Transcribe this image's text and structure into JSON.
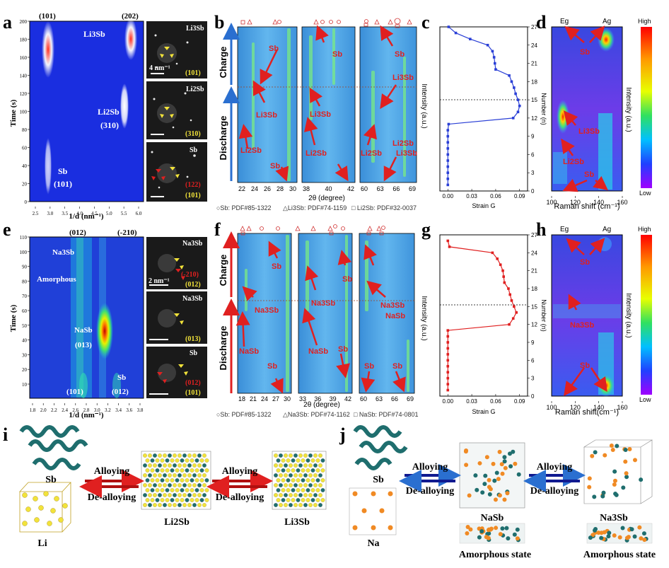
{
  "panel_letters": [
    "a",
    "b",
    "c",
    "d",
    "e",
    "f",
    "g",
    "h",
    "i",
    "j"
  ],
  "colors": {
    "map_bg": "#1a2ee0",
    "red": "#e02020",
    "blue_line": "#2a3fd6",
    "teal": "#1f6e6e",
    "yellow": "#f2e33a",
    "orange": "#f08a24",
    "dark_red_arrow": "#b01010",
    "dark_blue_arrow": "#101a90"
  },
  "panel_a": {
    "ylabel": "Time (s)",
    "xlabel": "1/d (nm⁻¹)",
    "xticks": [
      "2.5",
      "3.0",
      "3.5",
      "4.0",
      "4.5",
      "5.0",
      "5.5",
      "6.0"
    ],
    "yticks": [
      "0",
      "20",
      "40",
      "60",
      "80",
      "100",
      "120",
      "140",
      "160",
      "180",
      "200"
    ],
    "top_labels": [
      "(101)",
      "(202)"
    ],
    "phase_labels": [
      "Li3Sb",
      "Li2Sb",
      "(310)",
      "Sb",
      "(101)"
    ],
    "saed": [
      {
        "phase": "Li3Sb",
        "index": "(101)",
        "scale": "4 nm⁻¹"
      },
      {
        "phase": "Li2Sb",
        "index": "(310)",
        "scale": ""
      },
      {
        "phase": "Sb",
        "index": "(122)",
        "index2": "(101)",
        "scale": ""
      }
    ]
  },
  "panel_b": {
    "xlabel": "2θ (degree)",
    "ylabel": "Intensity (a.u.)",
    "sections": [
      {
        "ticks": [
          "22",
          "24",
          "26",
          "28",
          "30"
        ]
      },
      {
        "ticks": [
          "38",
          "40",
          "42"
        ]
      },
      {
        "ticks": [
          "60",
          "63",
          "66",
          "69"
        ]
      }
    ],
    "charge": "Charge",
    "discharge": "Discharge",
    "labels": [
      "Sb",
      "Li3Sb",
      "Li2Sb",
      "Sb",
      "Li3Sb",
      "Li2Sb",
      "Sb",
      "Sb",
      "Li3Sb",
      "Li2Sb",
      "Li2Sb",
      "Li3Sb"
    ],
    "legend": [
      "○Sb: PDF#85-1322",
      "△Li3Sb: PDF#74-1159",
      "□ Li2Sb: PDF#32-0037"
    ]
  },
  "panel_c": {
    "xlabel": "Strain G",
    "ylabel": "Number (n)",
    "xticks": [
      "0.00",
      "0.03",
      "0.06",
      "0.09"
    ],
    "yticks": [
      "0",
      "3",
      "6",
      "9",
      "12",
      "15",
      "18",
      "21",
      "24",
      "27"
    ]
  },
  "panel_d": {
    "xlabel": "Raman shift (cm⁻¹)",
    "ylabel": "Intensity (a.u.)",
    "xticks": [
      "100",
      "120",
      "140",
      "160"
    ],
    "modes": [
      "Eg",
      "Ag"
    ],
    "labels": [
      "Sb",
      "Li3Sb",
      "Li2Sb",
      "Sb"
    ],
    "colorbar": [
      "High",
      "Low"
    ]
  },
  "panel_e": {
    "ylabel": "Time (s)",
    "xlabel": "1/d (nm⁻¹)",
    "xticks": [
      "1.8",
      "2.0",
      "2.2",
      "2.4",
      "2.6",
      "2.8",
      "3.0",
      "3.2",
      "3.4",
      "3.6",
      "3.8"
    ],
    "yticks": [
      "10",
      "20",
      "30",
      "40",
      "50",
      "60",
      "70",
      "80",
      "90",
      "100",
      "110"
    ],
    "top_labels": [
      "(012)",
      "(-210)"
    ],
    "phase_labels": [
      "Na3Sb",
      "Amorphous",
      "NaSb",
      "(013)",
      "Sb",
      "(101)",
      "(012)"
    ],
    "saed": [
      {
        "phase": "Na3Sb",
        "index": "(-210)",
        "index2": "(012)",
        "scale": "2 nm⁻¹"
      },
      {
        "phase": "Na3Sb",
        "index": "(013)",
        "scale": ""
      },
      {
        "phase": "Sb",
        "index": "(012)",
        "index2": "(101)",
        "scale": ""
      }
    ]
  },
  "panel_f": {
    "xlabel": "2θ (degree)",
    "ylabel": "Intensity (a.u.)",
    "sections": [
      {
        "ticks": [
          "18",
          "21",
          "24",
          "27",
          "30"
        ]
      },
      {
        "ticks": [
          "33",
          "36",
          "39",
          "42"
        ]
      },
      {
        "ticks": [
          "60",
          "63",
          "66",
          "69"
        ]
      }
    ],
    "charge": "Charge",
    "discharge": "Discharge",
    "labels": [
      "Sb",
      "Na3Sb",
      "NaSb",
      "Sb",
      "Na3Sb",
      "NaSb",
      "Sb",
      "Sb",
      "Na3Sb",
      "NaSb",
      "Sb",
      "Sb"
    ],
    "legend": [
      "○Sb: PDF#85-1322",
      "△Na3Sb: PDF#74-1162",
      "□ NaSb: PDF#74-0801"
    ]
  },
  "panel_g": {
    "xlabel": "Strain G",
    "ylabel": "Number (n)",
    "xticks": [
      "0.00",
      "0.03",
      "0.06",
      "0.09"
    ],
    "yticks": [
      "0",
      "3",
      "6",
      "9",
      "12",
      "15",
      "18",
      "21",
      "24",
      "27"
    ]
  },
  "panel_h": {
    "xlabel": "Raman shift(cm⁻¹)",
    "ylabel": "Intensity (a.u.)",
    "xticks": [
      "100",
      "120",
      "140",
      "160"
    ],
    "modes": [
      "Eg",
      "Ag"
    ],
    "labels": [
      "Sb",
      "Na3Sb",
      "Sb"
    ],
    "colorbar": [
      "High",
      "Low"
    ]
  },
  "panel_i": {
    "labels": [
      "Sb",
      "Li",
      "Li2Sb",
      "Li3Sb"
    ],
    "arrows": [
      "Alloying",
      "De-alloying",
      "Alloying",
      "De-alloying"
    ]
  },
  "panel_j": {
    "labels": [
      "Sb",
      "Na",
      "NaSb",
      "Na3Sb",
      "Amorphous state",
      "Amorphous state"
    ],
    "arrows": [
      "Alloying",
      "De-alloying",
      "Alloying",
      "De-alloying"
    ]
  },
  "chart_data": [
    {
      "type": "line",
      "title": "",
      "xlabel": "Strain G",
      "ylabel": "Number (n)",
      "xlim": [
        -0.01,
        0.1
      ],
      "ylim": [
        0,
        27
      ],
      "series": [
        {
          "x": [
            0.0,
            0.0,
            0.0,
            0.0,
            0.0,
            0.0,
            0.0,
            0.0,
            0.0,
            0.0,
            0.001,
            0.082,
            0.088,
            0.09,
            0.088,
            0.085,
            0.083,
            0.08,
            0.077,
            0.06,
            0.059,
            0.058,
            0.056,
            0.05,
            0.028,
            0.01,
            0.001
          ],
          "y": [
            1,
            2,
            3,
            4,
            5,
            6,
            7,
            8,
            9,
            10,
            11,
            12,
            13,
            14,
            15,
            16,
            17,
            18,
            19,
            20,
            21,
            22,
            23,
            24,
            25,
            26,
            27
          ]
        }
      ]
    },
    {
      "type": "line",
      "title": "",
      "xlabel": "Strain G",
      "ylabel": "Number (n)",
      "xlim": [
        -0.01,
        0.1
      ],
      "ylim": [
        0,
        27
      ],
      "series": [
        {
          "x": [
            0.0,
            0.0,
            0.0,
            0.0,
            0.0,
            0.0,
            0.0,
            0.0,
            0.0,
            0.0,
            0.0,
            0.077,
            0.082,
            0.086,
            0.083,
            0.08,
            0.078,
            0.076,
            0.071,
            0.07,
            0.069,
            0.066,
            0.062,
            0.056,
            0.002,
            0.0
          ],
          "y": [
            1,
            2,
            3,
            4,
            5,
            6,
            7,
            8,
            9,
            10,
            11,
            12,
            13,
            14,
            15,
            16,
            17,
            18,
            19,
            20,
            21,
            22,
            23,
            24,
            25,
            26
          ]
        }
      ]
    }
  ]
}
